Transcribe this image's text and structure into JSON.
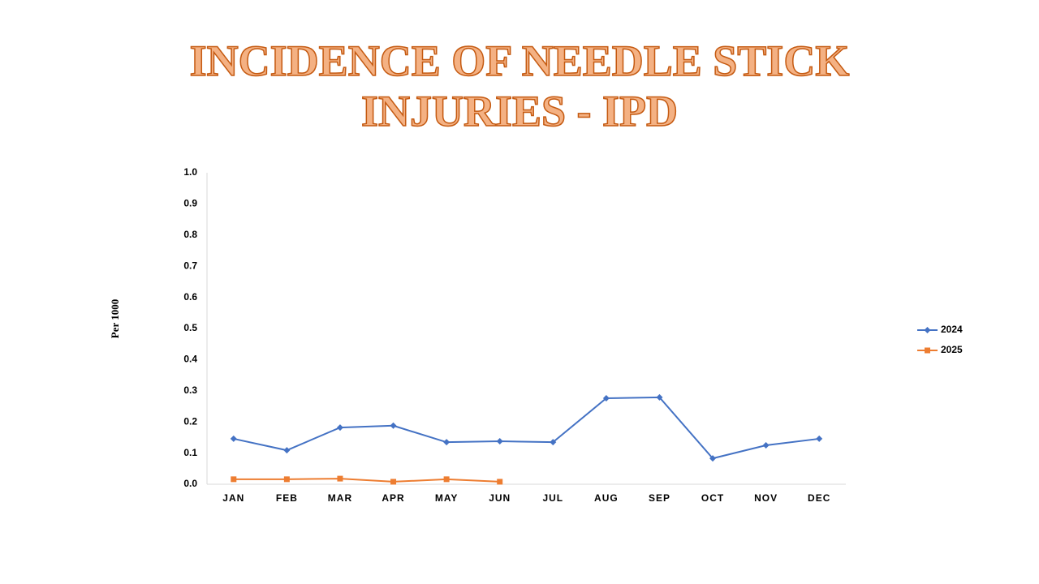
{
  "chart_data": {
    "type": "line",
    "title": "INCIDENCE OF NEEDLE STICK INJURIES - IPD",
    "ylabel": "Per 1000",
    "categories": [
      "JAN",
      "FEB",
      "MAR",
      "APR",
      "MAY",
      "JUN",
      "JUL",
      "AUG",
      "SEP",
      "OCT",
      "NOV",
      "DEC"
    ],
    "series": [
      {
        "name": "2024",
        "color": "#4472c4",
        "marker": "diamond",
        "values": [
          0.146,
          0.109,
          0.182,
          0.188,
          0.135,
          0.138,
          0.135,
          0.276,
          0.279,
          0.083,
          0.125,
          0.146
        ]
      },
      {
        "name": "2025",
        "color": "#ed7d31",
        "marker": "square",
        "values": [
          0.016,
          0.016,
          0.018,
          0.008,
          0.016,
          0.008,
          null,
          null,
          null,
          null,
          null,
          null
        ]
      }
    ],
    "ylim": [
      0,
      1
    ],
    "yticks": [
      {
        "value": 0,
        "label": "0.0"
      },
      0.1,
      0.2,
      0.3,
      0.4,
      0.5,
      0.6,
      0.7,
      0.8,
      0.9,
      {
        "value": 1,
        "label": "1.0"
      }
    ],
    "grid": false,
    "legend": "right"
  }
}
